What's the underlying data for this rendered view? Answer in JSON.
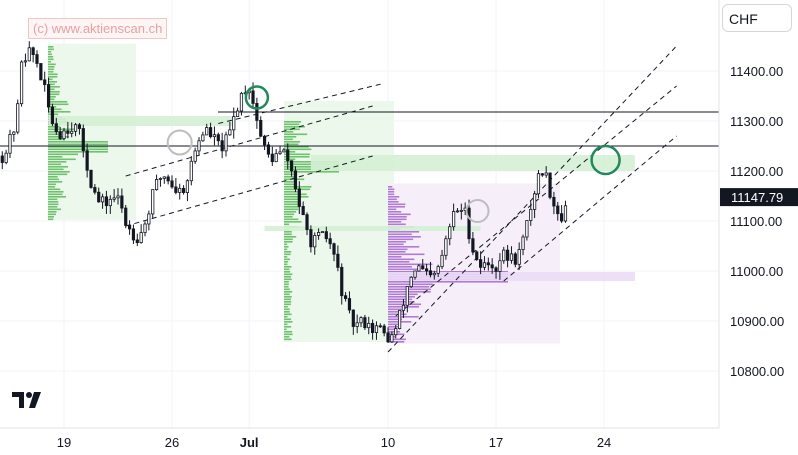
{
  "watermark": "(c) www.aktienscan.ch",
  "currency": "CHF",
  "brand": "TV",
  "colors": {
    "bull": "#131722",
    "bear": "#131722",
    "green_zone": "#d4efd4",
    "purple_zone": "#eadcf5",
    "circle_green": "#1f8a5a",
    "circle_gray": "#bdbdbd",
    "price_label_bg": "#131722"
  },
  "chart_data": {
    "type": "candlestick",
    "y_axis": {
      "ticks": [
        11400,
        11300,
        11200,
        11100,
        11000,
        10900,
        10800
      ],
      "tick_labels": [
        "11400.00",
        "11300.00",
        "11200.00",
        "11100.00",
        "11000.00",
        "10900.00",
        "10800.00"
      ],
      "range": [
        10780,
        11480
      ]
    },
    "x_axis": {
      "tick_labels": [
        "19",
        "26",
        "Jul",
        "10",
        "17",
        "24"
      ]
    },
    "last_price": {
      "value": 11147.79,
      "label": "11147.79"
    },
    "horizontal_lines": [
      11318,
      11250
    ],
    "zones": [
      {
        "color": "green",
        "from": 11290,
        "to": 11310,
        "start": "Jun 18",
        "end": "Jun 30"
      },
      {
        "color": "green",
        "from": 11200,
        "to": 11232,
        "start": "Jul 5",
        "end": "Jul 26"
      },
      {
        "color": "green",
        "from": 11080,
        "to": 11090,
        "start": "Jul 2",
        "end": "Jul 16"
      },
      {
        "color": "purple",
        "from": 10980,
        "to": 10998,
        "start": "Jul 10",
        "end": "Jul 26"
      }
    ],
    "key_points": [
      {
        "date": "Jun 16",
        "price": 11450
      },
      {
        "date": "Jun 23",
        "price": 11080
      },
      {
        "date": "Jul 1",
        "price": 11340
      },
      {
        "date": "Jul 9",
        "price": 10850
      },
      {
        "date": "Jul 15",
        "price": 11110
      },
      {
        "date": "Jul 17",
        "price": 10975
      },
      {
        "date": "Jul 20",
        "price": 11170
      },
      {
        "date": "Jul 21",
        "price": 11147.79
      }
    ]
  }
}
